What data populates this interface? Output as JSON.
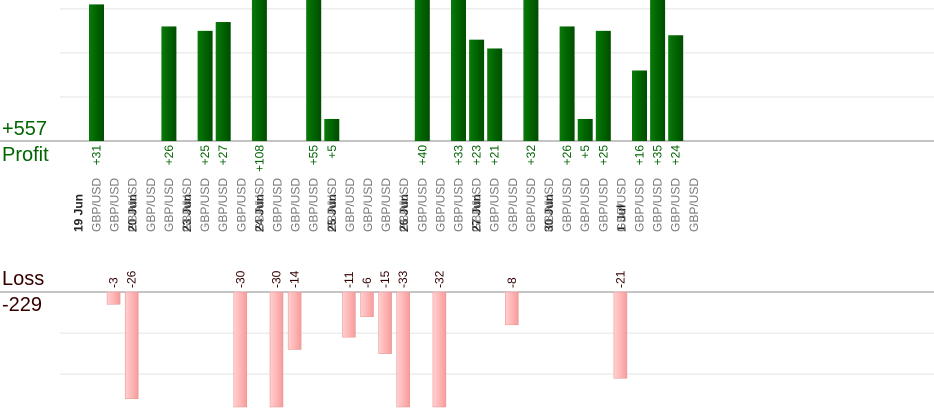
{
  "summary": {
    "profit_total": "+557",
    "profit_label": "Profit",
    "loss_label": "Loss",
    "loss_total": "-229"
  },
  "colors": {
    "profit_bar": "#006400",
    "loss_bar": "#ffb6b6",
    "loss_bar_edge": "#e89090",
    "profit_text": "#006400",
    "loss_text": "#330000",
    "date_text": "#222222",
    "pair_text": "#777777",
    "grid": "#e4e4e4",
    "baseline": "#888888"
  },
  "chart_data": {
    "type": "bar",
    "title": "",
    "grid": true,
    "date_groups": [
      {
        "label": "19 Jun",
        "start": 0,
        "count": 3
      },
      {
        "label": "20 Jun",
        "start": 3,
        "count": 3
      },
      {
        "label": "23 Jun",
        "start": 6,
        "count": 4
      },
      {
        "label": "24 Jun",
        "start": 10,
        "count": 4
      },
      {
        "label": "25 Jun",
        "start": 14,
        "count": 4
      },
      {
        "label": "26 Jun",
        "start": 18,
        "count": 4
      },
      {
        "label": "27 Jun",
        "start": 22,
        "count": 4
      },
      {
        "label": "30 Jun",
        "start": 26,
        "count": 4
      },
      {
        "label": "1 Jul",
        "start": 30,
        "count": 4
      }
    ],
    "trades": [
      {
        "pair": "GBP/USD",
        "value": 31
      },
      {
        "pair": "GBP/USD",
        "value": -3
      },
      {
        "pair": "GBP/USD",
        "value": -26
      },
      {
        "pair": "GBP/USD",
        "value": null
      },
      {
        "pair": "GBP/USD",
        "value": 26
      },
      {
        "pair": "GBP/USD",
        "value": null
      },
      {
        "pair": "GBP/USD",
        "value": 25
      },
      {
        "pair": "GBP/USD",
        "value": 27
      },
      {
        "pair": "GBP/USD",
        "value": -30
      },
      {
        "pair": "GBP/USD",
        "value": 108
      },
      {
        "pair": "GBP/USD",
        "value": -30
      },
      {
        "pair": "GBP/USD",
        "value": -14
      },
      {
        "pair": "GBP/USD",
        "value": 55
      },
      {
        "pair": "GBP/USD",
        "value": 5
      },
      {
        "pair": "GBP/USD",
        "value": -11
      },
      {
        "pair": "GBP/USD",
        "value": -6
      },
      {
        "pair": "GBP/USD",
        "value": -15
      },
      {
        "pair": "GBP/USD",
        "value": -33
      },
      {
        "pair": "GBP/USD",
        "value": 40
      },
      {
        "pair": "GBP/USD",
        "value": -32
      },
      {
        "pair": "GBP/USD",
        "value": 33
      },
      {
        "pair": "GBP/USD",
        "value": 23
      },
      {
        "pair": "GBP/USD",
        "value": 21
      },
      {
        "pair": "GBP/USD",
        "value": -8
      },
      {
        "pair": "GBP/USD",
        "value": 32
      },
      {
        "pair": "GBP/USD",
        "value": null
      },
      {
        "pair": "GBP/USD",
        "value": 26
      },
      {
        "pair": "GBP/USD",
        "value": 5
      },
      {
        "pair": "GBP/USD",
        "value": 25
      },
      {
        "pair": "GBP/USD",
        "value": -21
      },
      {
        "pair": "GBP/USD",
        "value": 16
      },
      {
        "pair": "GBP/USD",
        "value": 35
      },
      {
        "pair": "GBP/USD",
        "value": 24
      },
      {
        "pair": "GBP/USD",
        "value": null
      }
    ],
    "profit_axis_max": 32,
    "loss_axis_max": 28,
    "grid_step": 10
  }
}
